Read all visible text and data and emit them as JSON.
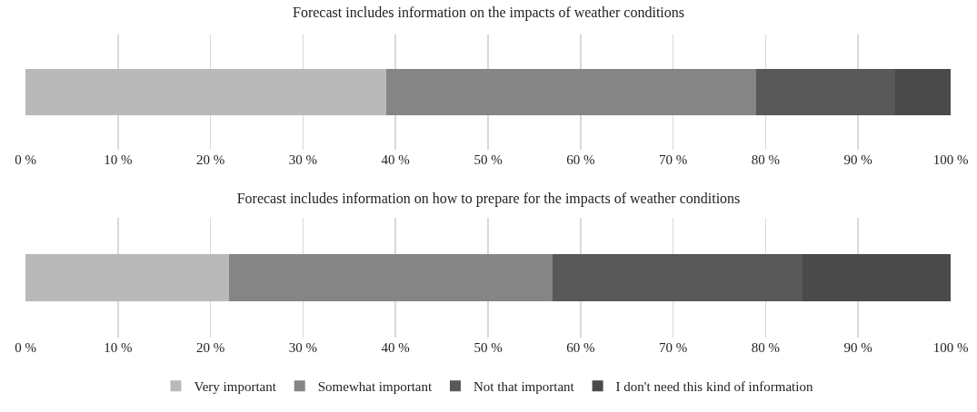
{
  "chart_data": [
    {
      "type": "bar",
      "title": "Forecast includes information on the impacts of weather conditions",
      "orientation": "horizontal",
      "stacked": true,
      "categories": [
        null
      ],
      "series": [
        {
          "color": "#b9b9b9",
          "values": [
            39
          ]
        },
        {
          "color": "#858585",
          "values": [
            40
          ]
        },
        {
          "color": "#585858",
          "values": [
            15
          ]
        },
        {
          "color": "#4a4a4a",
          "values": [
            6
          ]
        }
      ],
      "xlim": [
        0,
        100
      ],
      "xticks": [
        {
          "value": 0,
          "label": "0 %"
        },
        {
          "value": 10,
          "label": "10 %"
        },
        {
          "value": 20,
          "label": "20 %"
        },
        {
          "value": 30,
          "label": "30 %"
        },
        {
          "value": 40,
          "label": "40 %"
        },
        {
          "value": 50,
          "label": "50 %"
        },
        {
          "value": 60,
          "label": "60 %"
        },
        {
          "value": 70,
          "label": "70 %"
        },
        {
          "value": 80,
          "label": "80 %"
        },
        {
          "value": 90,
          "label": "90 %"
        },
        {
          "value": 100,
          "label": "100 %"
        }
      ],
      "grid": "x",
      "tick_labels": "x",
      "legend": false
    },
    {
      "type": "bar",
      "title": "Forecast includes information on how to prepare for the impacts of weather conditions",
      "orientation": "horizontal",
      "stacked": true,
      "categories": [
        null
      ],
      "series": [
        {
          "name": "Very important",
          "color": "#b9b9b9",
          "values": [
            22
          ]
        },
        {
          "name": "Somewhat important",
          "color": "#858585",
          "values": [
            35
          ]
        },
        {
          "name": "Not that important",
          "color": "#585858",
          "values": [
            27
          ]
        },
        {
          "name": "I don't need this kind of information",
          "color": "#4a4a4a",
          "values": [
            16
          ]
        }
      ],
      "xlim": [
        0,
        100
      ],
      "xticks": [
        {
          "value": 0,
          "label": "0 %"
        },
        {
          "value": 10,
          "label": "10 %"
        },
        {
          "value": 20,
          "label": "20 %"
        },
        {
          "value": 30,
          "label": "30 %"
        },
        {
          "value": 40,
          "label": "40 %"
        },
        {
          "value": 50,
          "label": "50 %"
        },
        {
          "value": 60,
          "label": "60 %"
        },
        {
          "value": 70,
          "label": "70 %"
        },
        {
          "value": 80,
          "label": "80 %"
        },
        {
          "value": 90,
          "label": "90 %"
        },
        {
          "value": 100,
          "label": "100 %"
        }
      ],
      "grid": "x",
      "tick_labels": "x",
      "legend": "bottom"
    }
  ]
}
